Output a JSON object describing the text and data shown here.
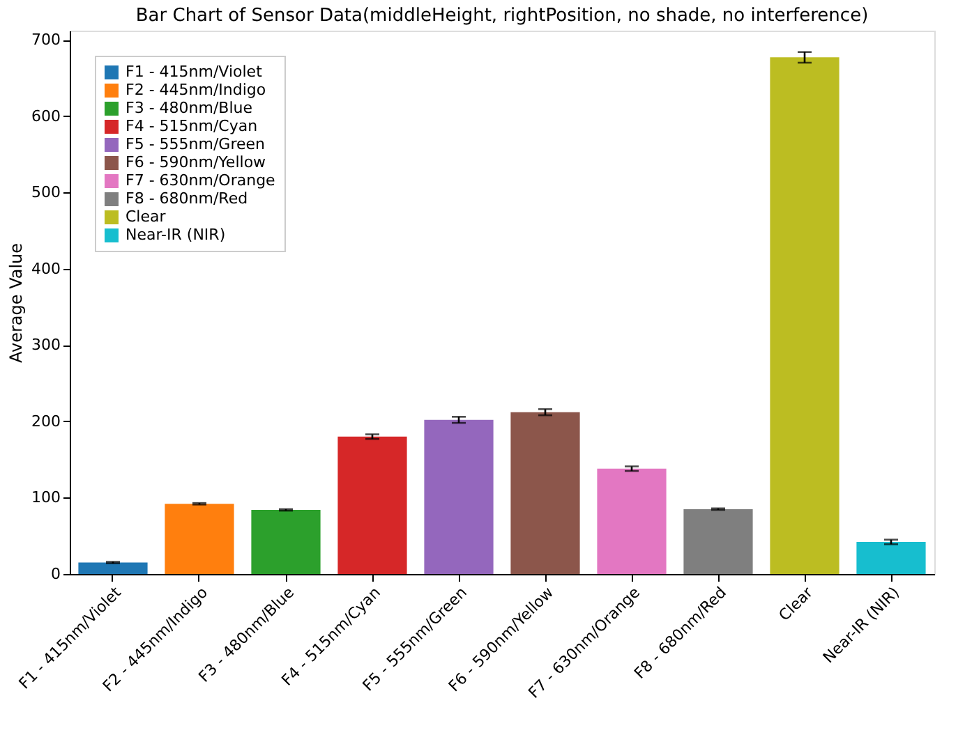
{
  "chart_data": {
    "type": "bar",
    "title": "Bar Chart of Sensor Data(middleHeight, rightPosition, no shade, no interference)",
    "ylabel": "Average Value",
    "categories": [
      "F1 - 415nm/Violet",
      "F2 - 445nm/Indigo",
      "F3 - 480nm/Blue",
      "F4 - 515nm/Cyan",
      "F5 - 555nm/Green",
      "F6 - 590nm/Yellow",
      "F7 - 630nm/Orange",
      "F8 - 680nm/Red",
      "Clear",
      "Near-IR (NIR)"
    ],
    "stacked": true,
    "series": [
      {
        "name": "F1 - 415nm/Violet",
        "color": "#1f77b4",
        "values": [
          15,
          null,
          null,
          null,
          null,
          null,
          null,
          null,
          null,
          null
        ],
        "errors": [
          1,
          null,
          null,
          null,
          null,
          null,
          null,
          null,
          null,
          null
        ]
      },
      {
        "name": "F2 - 445nm/Indigo",
        "color": "#ff7f0e",
        "values": [
          null,
          92,
          null,
          null,
          null,
          null,
          null,
          null,
          null,
          null
        ],
        "errors": [
          null,
          1,
          null,
          null,
          null,
          null,
          null,
          null,
          null,
          null
        ]
      },
      {
        "name": "F3 - 480nm/Blue",
        "color": "#2ca02c",
        "values": [
          null,
          null,
          84,
          null,
          null,
          null,
          null,
          null,
          null,
          null
        ],
        "errors": [
          null,
          null,
          1,
          null,
          null,
          null,
          null,
          null,
          null,
          null
        ]
      },
      {
        "name": "F4 - 515nm/Cyan",
        "color": "#d62728",
        "values": [
          null,
          null,
          null,
          180,
          null,
          null,
          null,
          null,
          null,
          null
        ],
        "errors": [
          null,
          null,
          null,
          3,
          null,
          null,
          null,
          null,
          null,
          null
        ]
      },
      {
        "name": "F5 - 555nm/Green",
        "color": "#9467bd",
        "values": [
          null,
          null,
          null,
          null,
          202,
          null,
          null,
          null,
          null,
          null
        ],
        "errors": [
          null,
          null,
          null,
          null,
          4,
          null,
          null,
          null,
          null,
          null
        ]
      },
      {
        "name": "F6 - 590nm/Yellow",
        "color": "#8c564b",
        "values": [
          null,
          null,
          null,
          null,
          null,
          212,
          null,
          null,
          null,
          null
        ],
        "errors": [
          null,
          null,
          null,
          null,
          null,
          4,
          null,
          null,
          null,
          null
        ]
      },
      {
        "name": "F7 - 630nm/Orange",
        "color": "#e377c2",
        "values": [
          null,
          null,
          null,
          null,
          null,
          null,
          138,
          null,
          null,
          null
        ],
        "errors": [
          null,
          null,
          null,
          null,
          null,
          null,
          3,
          null,
          null,
          null
        ]
      },
      {
        "name": "F8 - 680nm/Red",
        "color": "#7f7f7f",
        "values": [
          null,
          null,
          null,
          null,
          null,
          null,
          null,
          85,
          null,
          null
        ],
        "errors": [
          null,
          null,
          null,
          null,
          null,
          null,
          null,
          1,
          null,
          null
        ]
      },
      {
        "name": "Clear",
        "color": "#bcbd22",
        "values": [
          null,
          null,
          null,
          null,
          null,
          null,
          null,
          null,
          677,
          null
        ],
        "errors": [
          null,
          null,
          null,
          null,
          null,
          null,
          null,
          null,
          7,
          null
        ]
      },
      {
        "name": "Near-IR (NIR)",
        "color": "#17becf",
        "values": [
          null,
          null,
          null,
          null,
          null,
          null,
          null,
          null,
          null,
          42
        ],
        "errors": [
          null,
          null,
          null,
          null,
          null,
          null,
          null,
          null,
          null,
          3
        ]
      }
    ],
    "ylim": [
      0,
      712
    ],
    "yticks": [
      0,
      100,
      200,
      300,
      400,
      500,
      600,
      700
    ],
    "grid": false,
    "legend": "top left"
  }
}
